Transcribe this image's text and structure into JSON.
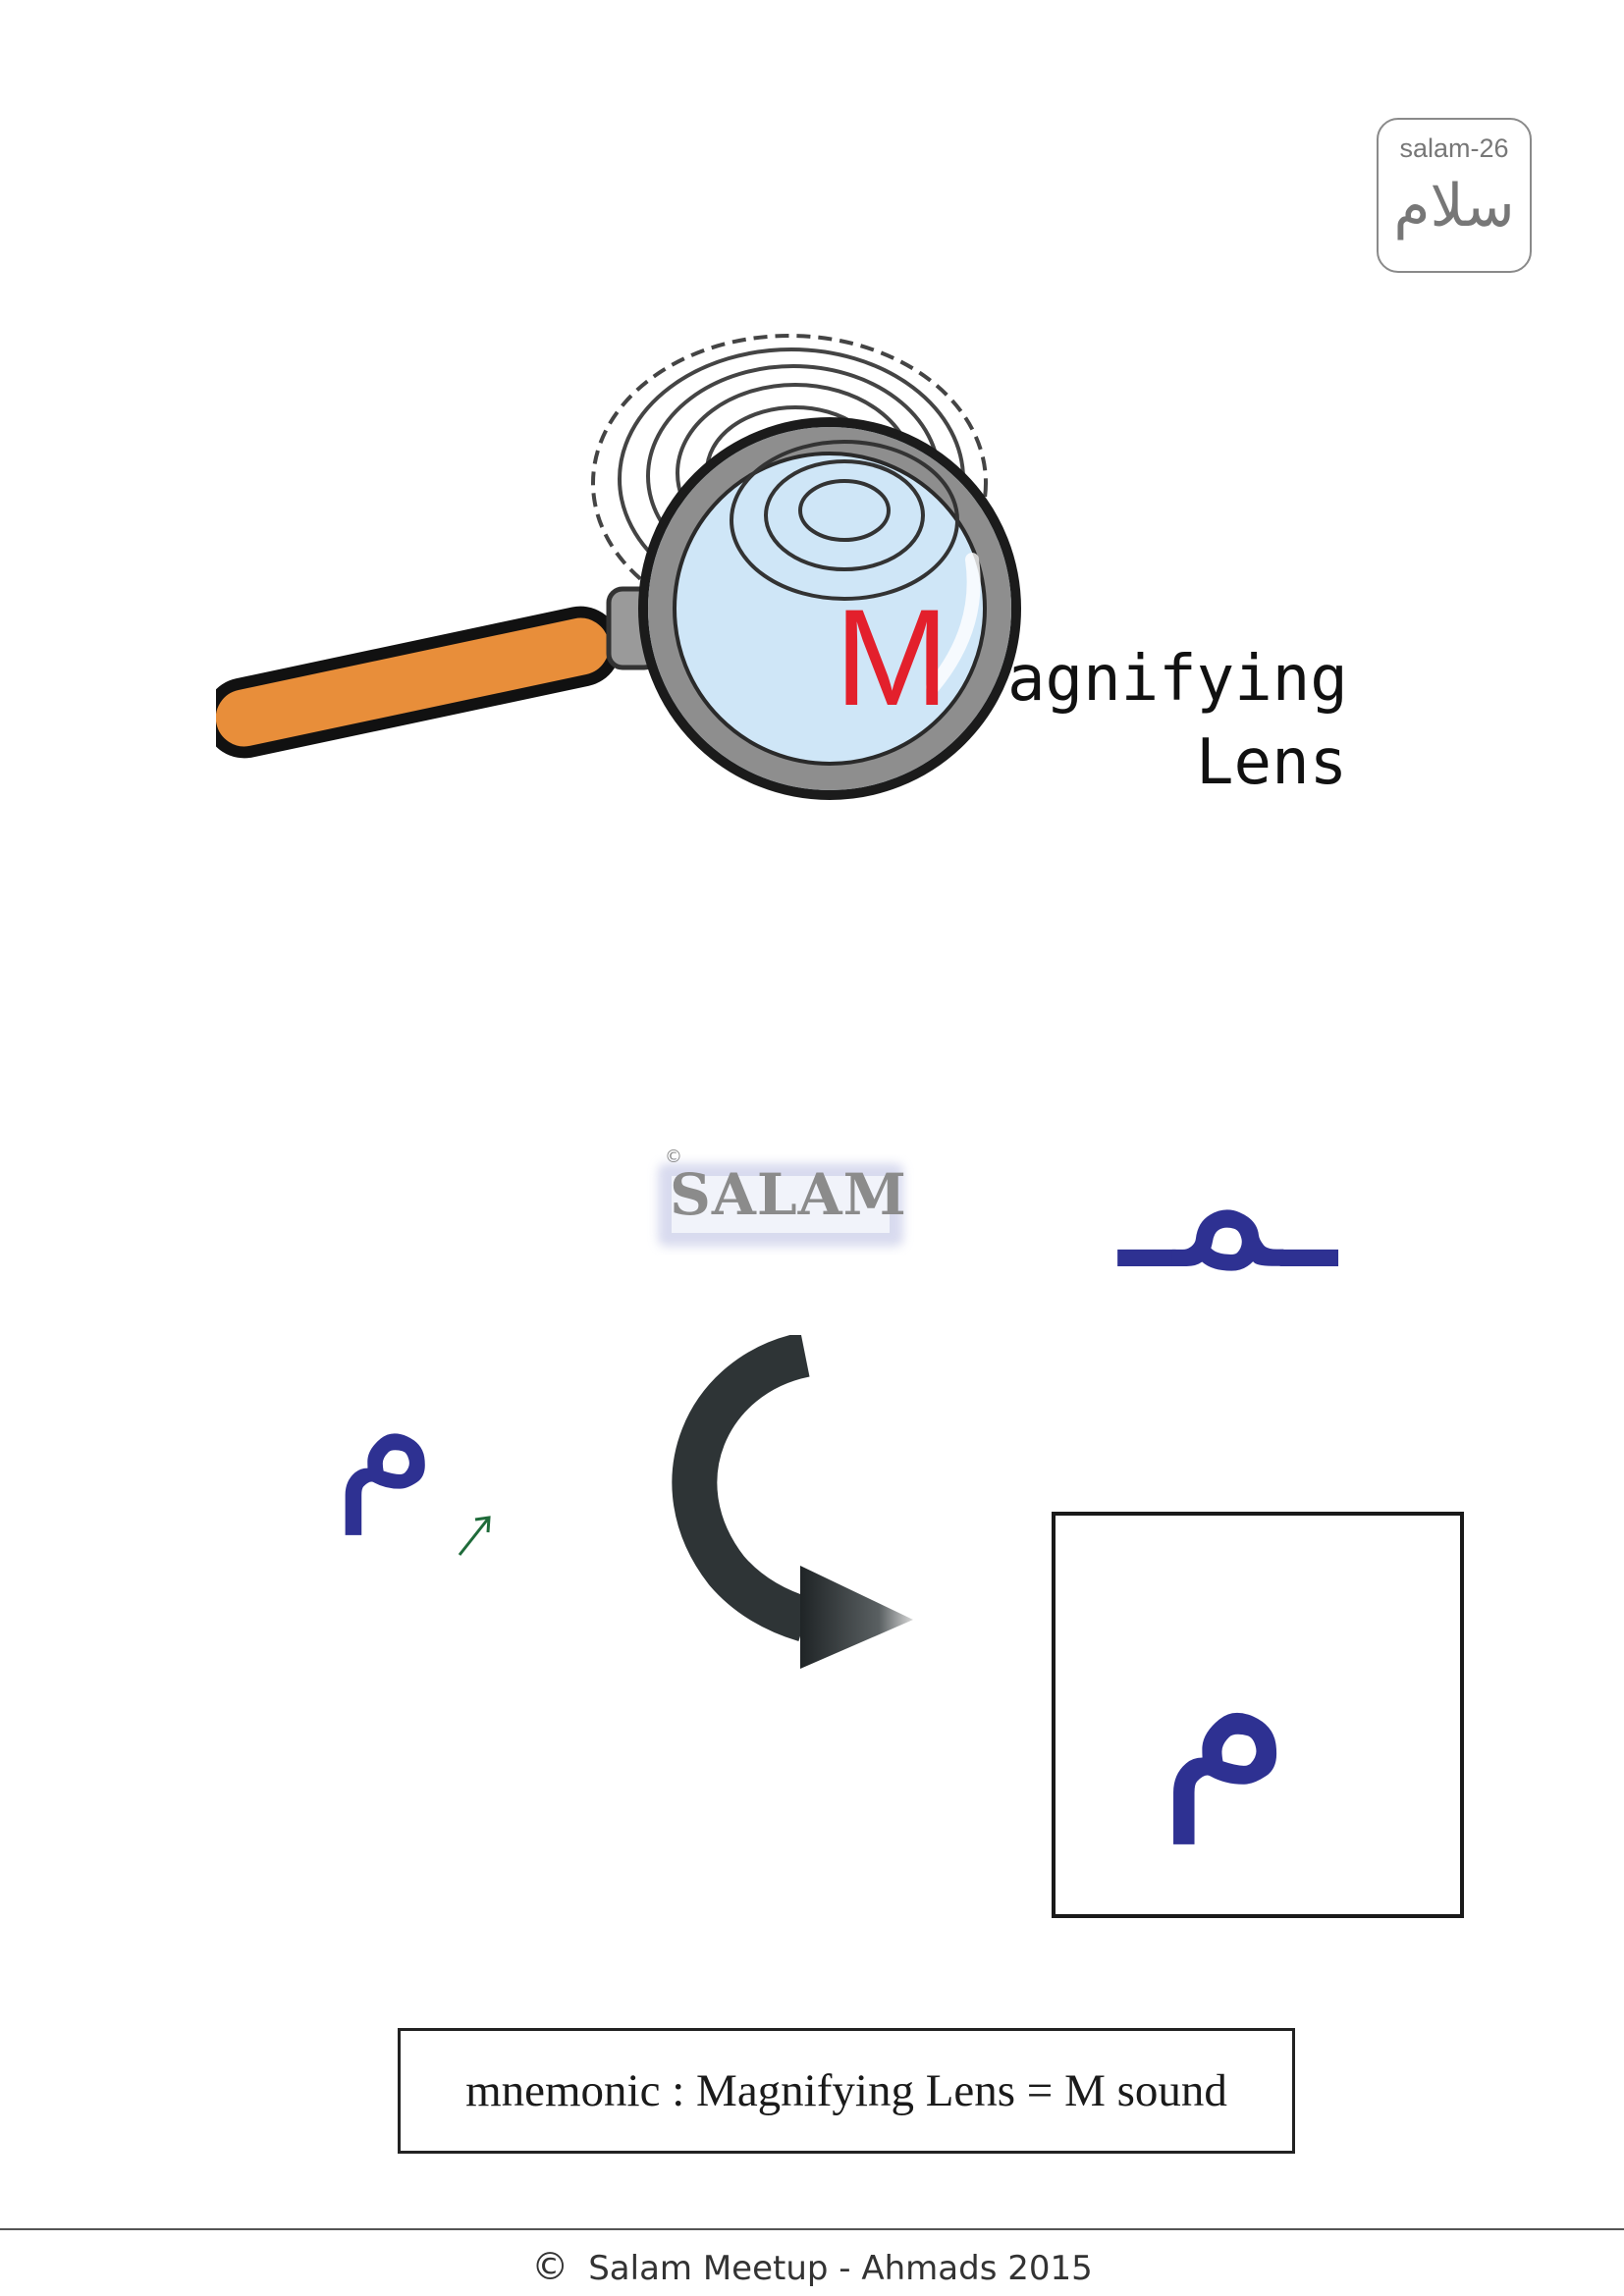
{
  "badge": {
    "id": "salam-26",
    "arabic": "سلام"
  },
  "title": {
    "initial": "M",
    "rest": "agnifying",
    "line2": "Lens",
    "initial_color": "#e3202c"
  },
  "watermark": {
    "text": "SALAM",
    "copyright": "©"
  },
  "letters": {
    "medial": "ـمـ",
    "final": "م",
    "isolated": "م",
    "color": "#2e3192"
  },
  "mnemonic": "mnemonic : Magnifying Lens = M sound",
  "footer": {
    "copyright_symbol": "©",
    "text": "Salam Meetup - Ahmads  2015"
  },
  "icons": [
    "fingerprint-icon",
    "magnifying-glass-icon",
    "curved-arrow-icon",
    "small-arrow-icon"
  ]
}
